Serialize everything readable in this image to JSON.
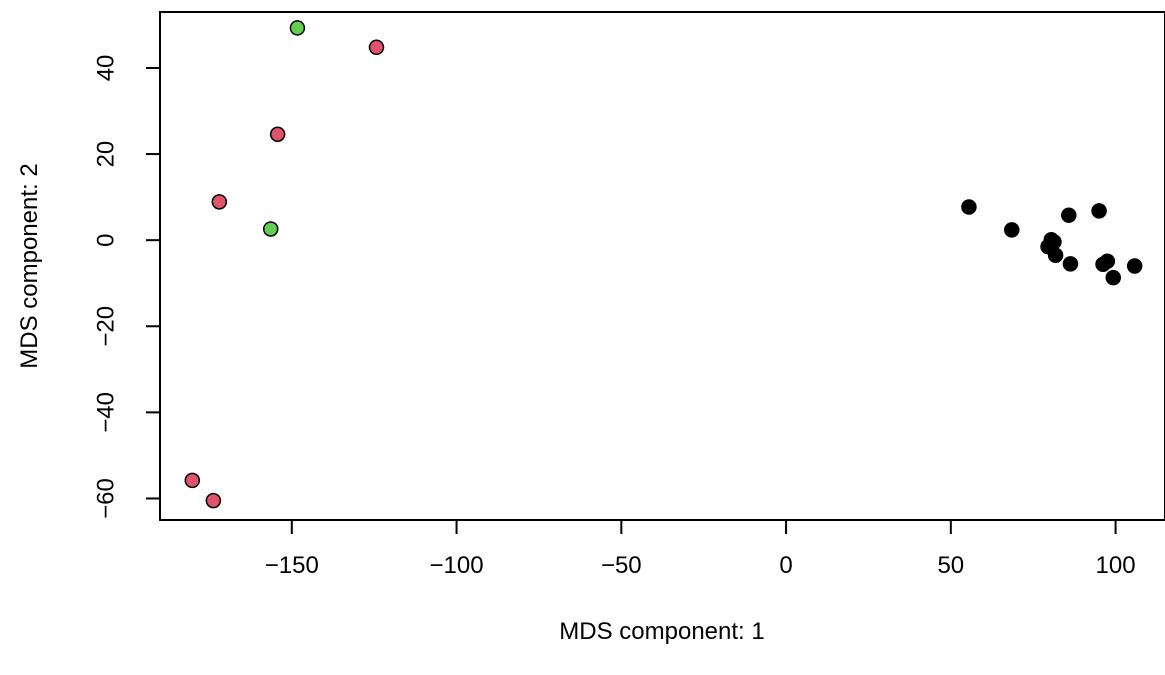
{
  "chart_data": {
    "type": "scatter",
    "title": "",
    "xlabel": "MDS component: 1",
    "ylabel": "MDS component: 2",
    "xlim": [
      -190,
      115
    ],
    "ylim": [
      -65,
      53
    ],
    "x_ticks": [
      -150,
      -100,
      -50,
      0,
      50,
      100
    ],
    "x_tick_labels": [
      "−150",
      "−100",
      "−50",
      "0",
      "50",
      "100"
    ],
    "y_ticks": [
      -60,
      -40,
      -20,
      0,
      20,
      40
    ],
    "y_tick_labels": [
      "−60",
      "−40",
      "−20",
      "0",
      "20",
      "40"
    ],
    "grid": false,
    "legend": "none",
    "series": [
      {
        "color": "#000000",
        "points": [
          {
            "x": 55.5,
            "y": 7.7
          },
          {
            "x": 68.5,
            "y": 2.4
          },
          {
            "x": 79.5,
            "y": -1.5
          },
          {
            "x": 80.5,
            "y": 0.1
          },
          {
            "x": 81.3,
            "y": -0.4
          },
          {
            "x": 81.8,
            "y": -3.5
          },
          {
            "x": 85.8,
            "y": 5.8
          },
          {
            "x": 86.3,
            "y": -5.5
          },
          {
            "x": 95.0,
            "y": 6.8
          },
          {
            "x": 96.2,
            "y": -5.6
          },
          {
            "x": 97.5,
            "y": -4.9
          },
          {
            "x": 99.3,
            "y": -8.7
          },
          {
            "x": 105.8,
            "y": -6.0
          }
        ]
      },
      {
        "color": "#DF536B",
        "points": [
          {
            "x": -124.3,
            "y": 44.8
          },
          {
            "x": -154.3,
            "y": 24.6
          },
          {
            "x": -172.0,
            "y": 8.9
          },
          {
            "x": -180.2,
            "y": -55.8
          },
          {
            "x": -173.8,
            "y": -60.5
          }
        ]
      },
      {
        "color": "#61D04F",
        "points": [
          {
            "x": -148.3,
            "y": 49.3
          },
          {
            "x": -156.4,
            "y": 2.6
          }
        ]
      }
    ]
  }
}
